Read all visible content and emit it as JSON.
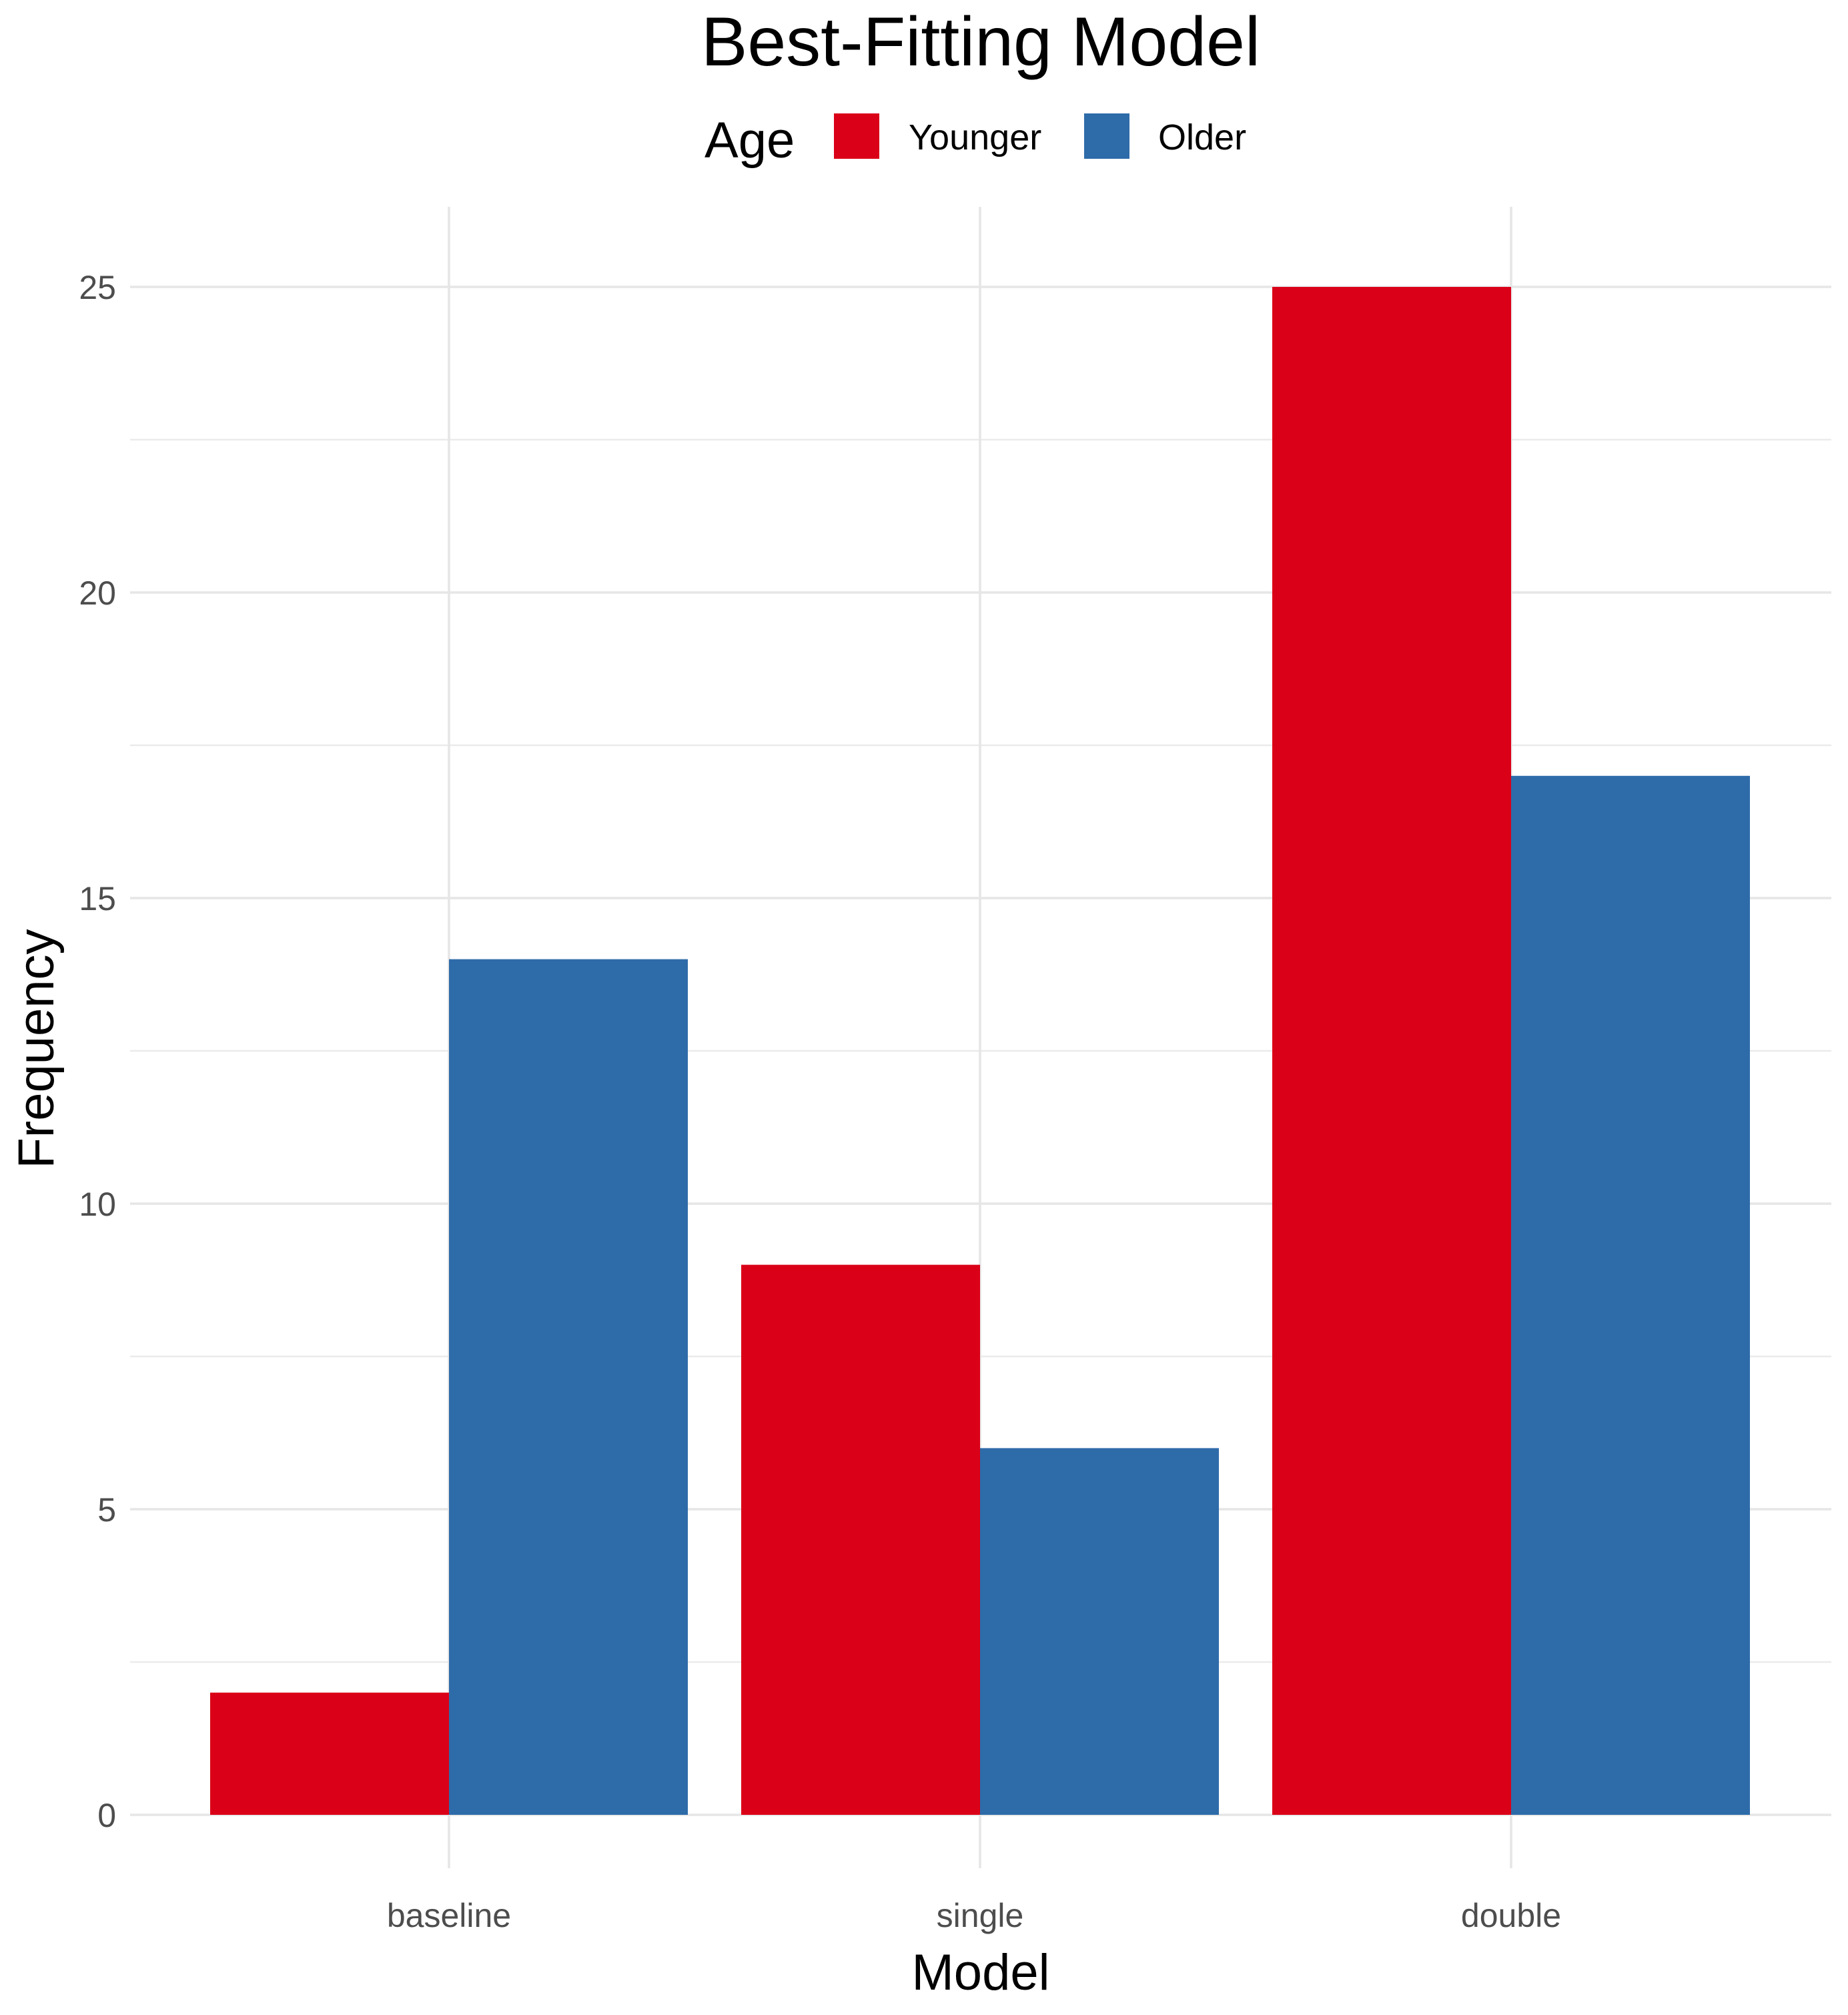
{
  "chart_data": {
    "type": "bar",
    "title": "Best-Fitting Model",
    "xlabel": "Model",
    "ylabel": "Frequency",
    "categories": [
      "baseline",
      "single",
      "double"
    ],
    "series": [
      {
        "name": "Younger",
        "values": [
          2,
          9,
          25
        ],
        "color": "#DA0018"
      },
      {
        "name": "Older",
        "values": [
          14,
          6,
          17
        ],
        "color": "#2E6BA9"
      }
    ],
    "legend": {
      "title": "Age",
      "position": "top"
    },
    "ylim": [
      0,
      26.25
    ],
    "yticks": [
      "0",
      "5",
      "10",
      "15",
      "20",
      "25"
    ],
    "grid": true
  }
}
